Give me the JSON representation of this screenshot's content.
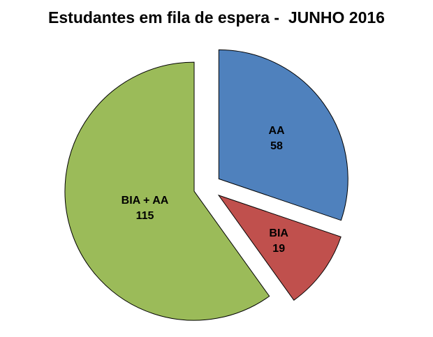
{
  "chart_data": {
    "type": "pie",
    "title": "Estudantes em fila de espera -  JUNHO 2016",
    "categories": [
      "AA",
      "BIA",
      "BIA + AA"
    ],
    "values": [
      58,
      19,
      115
    ],
    "colors": [
      "#4F81BD",
      "#C0504D",
      "#9BBB59"
    ],
    "slice_border_color": "#000000",
    "background": "#FFFFFF",
    "exploded": true,
    "start_angle_clockwise_from_top_deg": 0,
    "legend": "none",
    "labels_show": "category_and_value"
  }
}
